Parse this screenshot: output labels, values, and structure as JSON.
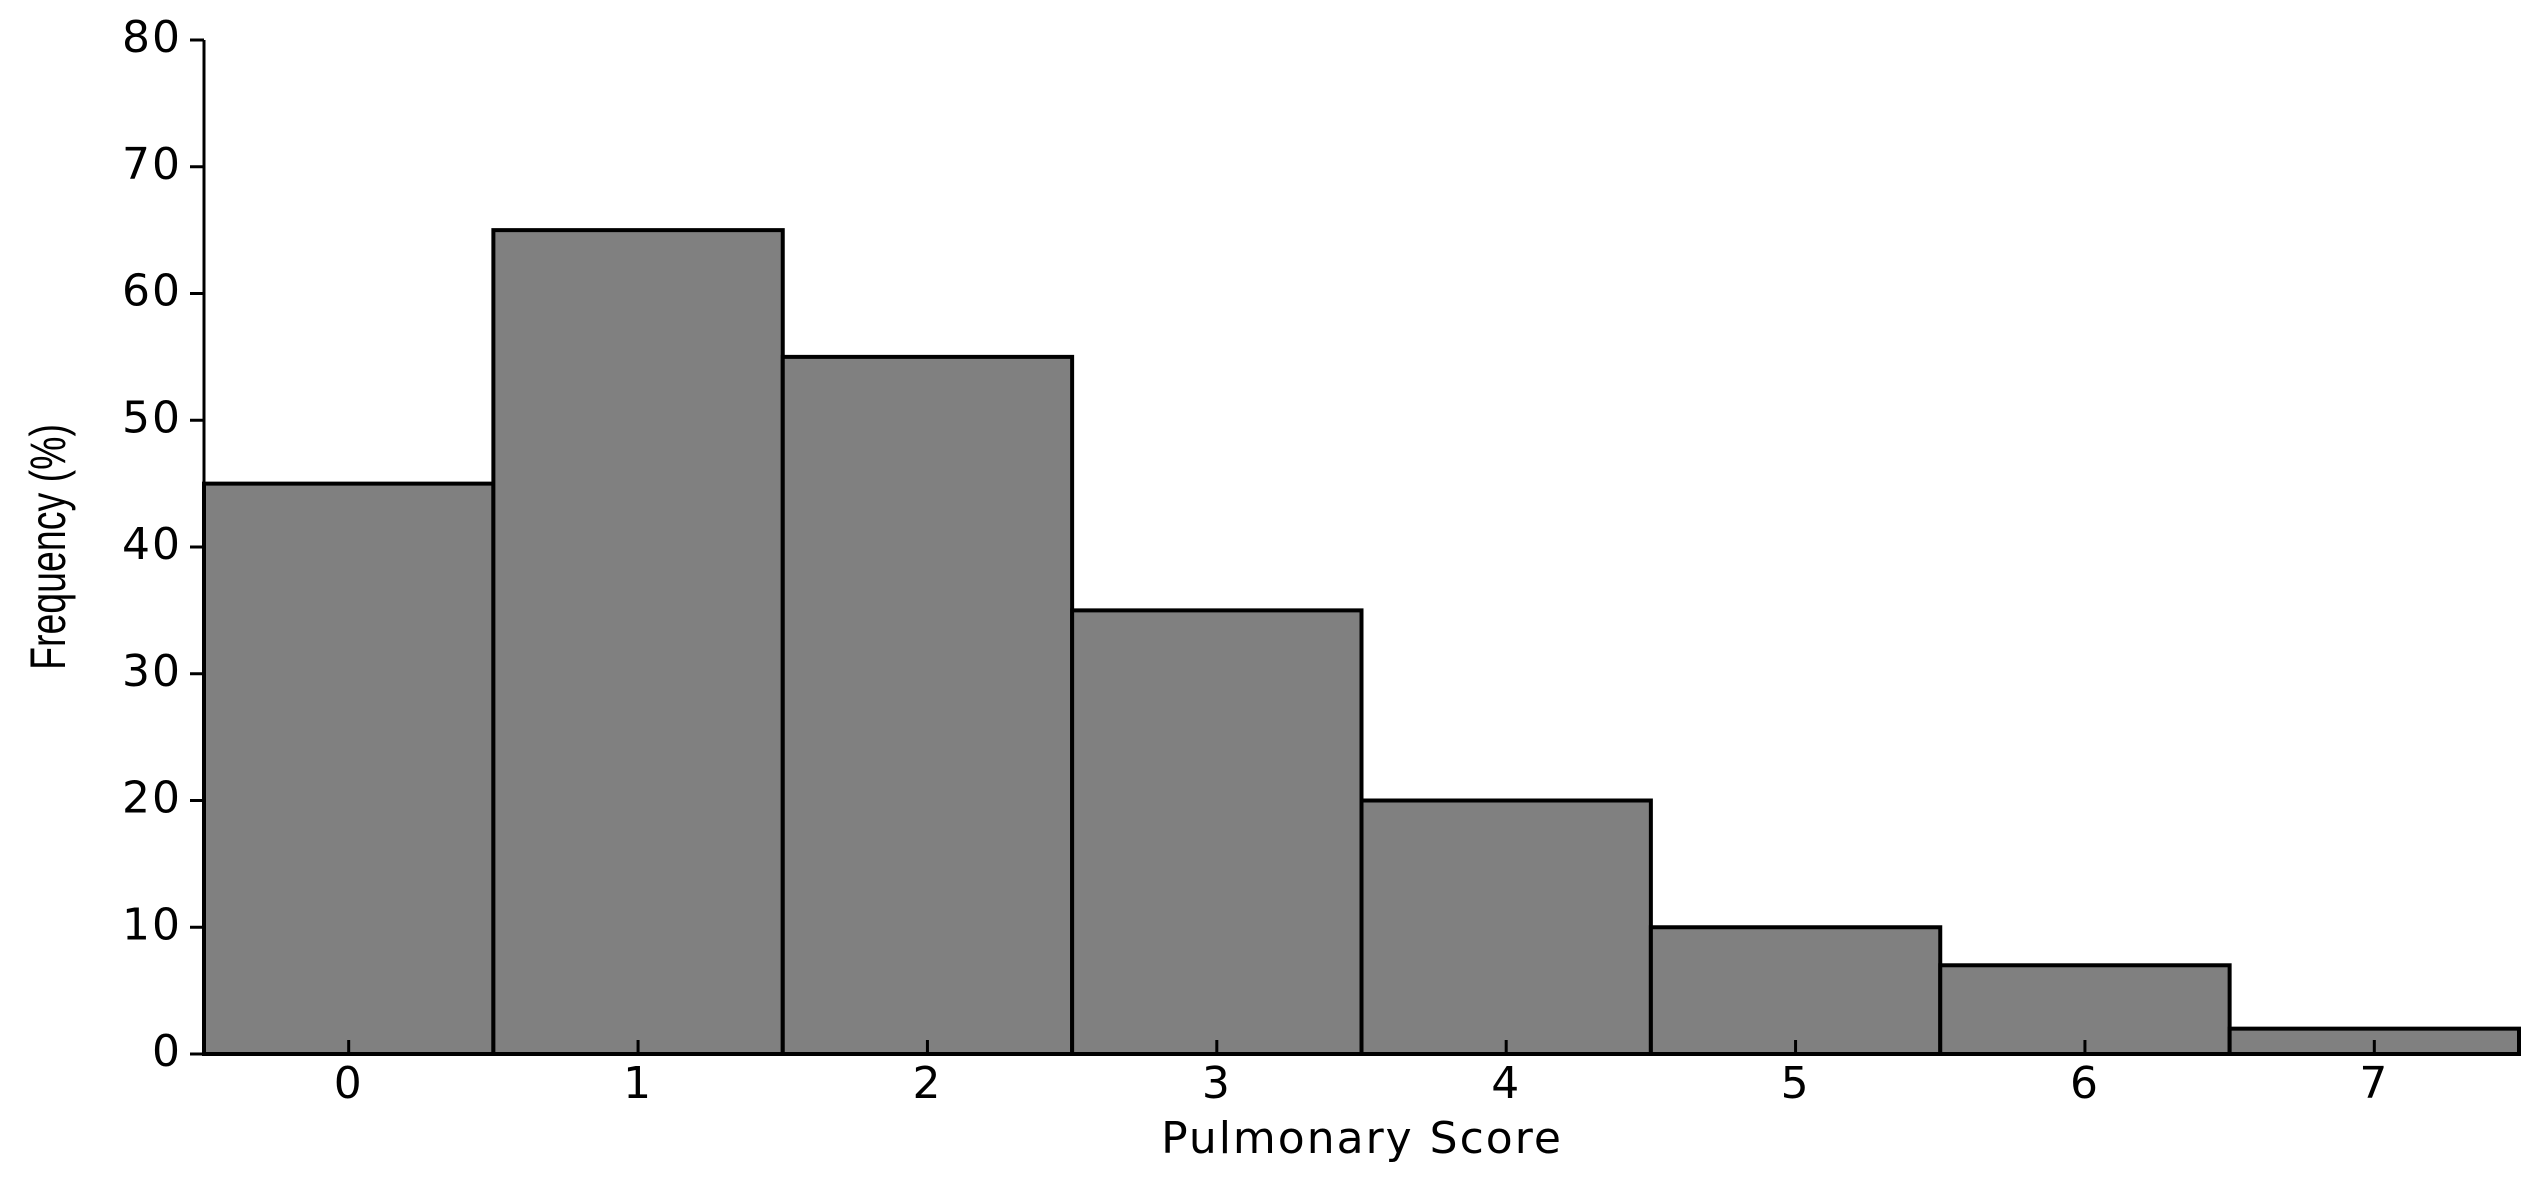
{
  "chart_data": {
    "type": "histogram",
    "x_label": "Pulmonary Score",
    "y_label": "Frequency (%)",
    "bins": [
      -0.5,
      0.5,
      1.5,
      2.5,
      3.5,
      4.5,
      5.5,
      6.5,
      7.5
    ],
    "values": [
      45,
      65,
      55,
      35,
      20,
      10,
      7,
      2
    ],
    "color": "#808080",
    "edge_color": "#000000",
    "xlim": [
      -0.5,
      7.5
    ],
    "xticks": [
      0,
      1,
      2,
      3,
      4,
      5,
      6,
      7
    ],
    "ylim": [
      0,
      80
    ],
    "yticks": [
      0,
      10,
      20,
      30,
      40,
      50,
      60,
      70,
      80
    ],
    "grid": false
  }
}
